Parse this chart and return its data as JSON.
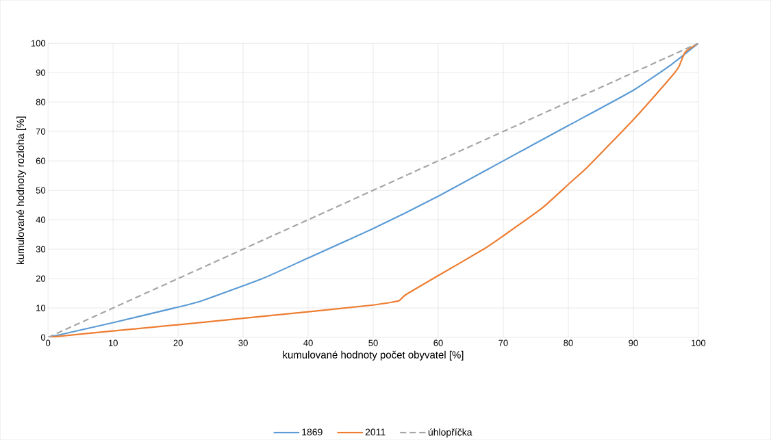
{
  "chart_data": {
    "type": "line",
    "xlabel": "kumulované hodnoty počet obyvatel [%]",
    "ylabel": "kumulované hodnoty rozloha [%]",
    "xlim": [
      0,
      100
    ],
    "ylim": [
      0,
      100
    ],
    "xticks": [
      0,
      10,
      20,
      30,
      40,
      50,
      60,
      70,
      80,
      90,
      100
    ],
    "yticks": [
      0,
      10,
      20,
      30,
      40,
      50,
      60,
      70,
      80,
      90,
      100
    ],
    "grid": true,
    "legend": "bottom",
    "series": [
      {
        "name": "1869",
        "color": "#5b9bd5",
        "line_style": "solid",
        "x": [
          0,
          10,
          20,
          23,
          25,
          33,
          40,
          50,
          60,
          70,
          80,
          90,
          96,
          100
        ],
        "values": [
          0,
          5,
          10.3,
          12,
          13.5,
          20,
          27,
          37,
          48,
          60,
          72,
          84,
          93,
          100
        ]
      },
      {
        "name": "2011",
        "color": "#ed7d31",
        "line_style": "solid",
        "x": [
          0,
          10,
          20,
          30,
          40,
          50,
          53,
          54,
          55,
          60,
          67,
          70,
          76,
          80,
          83,
          90,
          96,
          97,
          98,
          100
        ],
        "values": [
          0,
          2.2,
          4.3,
          6.5,
          8.7,
          11,
          12,
          12.5,
          14.5,
          21,
          30,
          34.5,
          44,
          52,
          58,
          74,
          89,
          92,
          97,
          100
        ]
      },
      {
        "name": "úhlopříčka",
        "color": "#a5a5a5",
        "line_style": "dashed",
        "x": [
          0,
          100
        ],
        "values": [
          0,
          100
        ]
      }
    ]
  }
}
